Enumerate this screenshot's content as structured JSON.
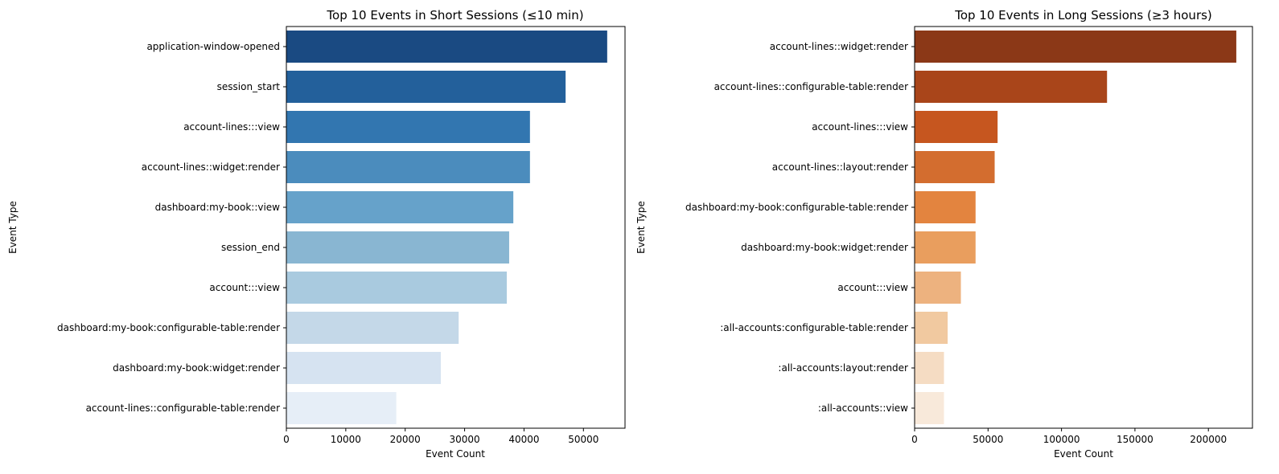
{
  "chart_data": [
    {
      "type": "bar",
      "orientation": "horizontal",
      "title": "Top 10 Events in Short Sessions (≤10 min)",
      "xlabel": "Event Count",
      "ylabel": "Event Type",
      "xlim": [
        0,
        57000
      ],
      "xticks": [
        0,
        10000,
        20000,
        30000,
        40000,
        50000
      ],
      "grid": false,
      "categories": [
        "application-window-opened",
        "session_start",
        "account-lines:::view",
        "account-lines::widget:render",
        "dashboard:my-book::view",
        "session_end",
        "account:::view",
        "dashboard:my-book:configurable-table:render",
        "dashboard:my-book:widget:render",
        "account-lines::configurable-table:render"
      ],
      "values": [
        54000,
        47000,
        41000,
        41000,
        38200,
        37500,
        37100,
        29000,
        26000,
        18500
      ],
      "colors": [
        "#1a4a82",
        "#23609b",
        "#3276b0",
        "#4b8cbd",
        "#66a2ca",
        "#89b6d2",
        "#a9cadf",
        "#c4d8e8",
        "#d6e3f1",
        "#e6eef7"
      ]
    },
    {
      "type": "bar",
      "orientation": "horizontal",
      "title": "Top 10 Events in Long Sessions (≥3 hours)",
      "xlabel": "Event Count",
      "ylabel": "Event Type",
      "xlim": [
        0,
        230000
      ],
      "xticks": [
        0,
        50000,
        100000,
        150000,
        200000
      ],
      "grid": false,
      "categories": [
        "account-lines::widget:render",
        "account-lines::configurable-table:render",
        "account-lines:::view",
        "account-lines::layout:render",
        "dashboard:my-book:configurable-table:render",
        "dashboard:my-book:widget:render",
        "account:::view",
        ":all-accounts:configurable-table:render",
        ":all-accounts:layout:render",
        ":all-accounts::view"
      ],
      "values": [
        219000,
        131000,
        56500,
        54500,
        41500,
        41500,
        31500,
        22500,
        20000,
        20000
      ],
      "colors": [
        "#8b3817",
        "#a9451a",
        "#c6561f",
        "#d36d2f",
        "#e3843f",
        "#e99e5e",
        "#edb27f",
        "#f1c9a0",
        "#f5dcc3",
        "#f8e9da"
      ]
    }
  ]
}
